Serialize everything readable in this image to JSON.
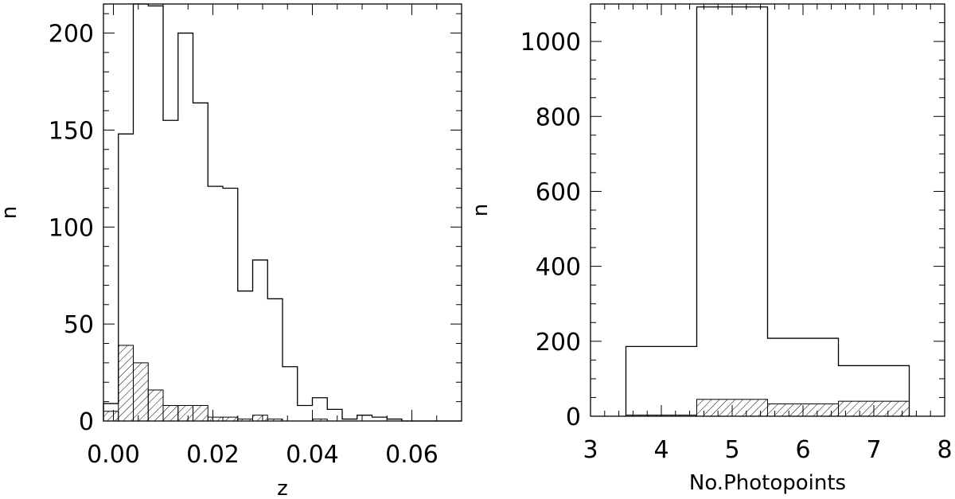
{
  "chart_data": [
    {
      "type": "histogram",
      "xlabel": "z",
      "ylabel": "n",
      "xlim": [
        -0.002,
        0.07
      ],
      "ylim": [
        0,
        215
      ],
      "xticks": [
        0.0,
        0.02,
        0.04,
        0.06
      ],
      "xtick_labels": [
        "0.00",
        "0.02",
        "0.04",
        "0.06"
      ],
      "yticks": [
        0,
        50,
        100,
        150,
        200
      ],
      "ytick_labels": [
        "0",
        "50",
        "100",
        "150",
        "200"
      ],
      "bin_edges": [
        -0.002,
        0.001,
        0.004,
        0.007,
        0.01,
        0.013,
        0.016,
        0.019,
        0.022,
        0.025,
        0.028,
        0.031,
        0.034,
        0.037,
        0.04,
        0.043,
        0.046,
        0.049,
        0.052,
        0.055,
        0.058,
        0.061,
        0.064,
        0.067,
        0.07
      ],
      "series": [
        {
          "style": "outline",
          "values": [
            9,
            148,
            216,
            214,
            155,
            200,
            164,
            121,
            120,
            67,
            83,
            63,
            28,
            8,
            12,
            6,
            1,
            3,
            2,
            1,
            0,
            0,
            0,
            0
          ]
        },
        {
          "style": "hatched",
          "values": [
            5,
            39,
            30,
            16,
            8,
            8,
            8,
            2,
            2,
            1,
            3,
            1,
            0,
            0,
            1,
            0,
            0,
            0,
            0,
            0,
            0,
            0,
            0,
            0
          ]
        }
      ]
    },
    {
      "type": "histogram",
      "xlabel": "No.Photopoints",
      "ylabel": "n",
      "xlim": [
        3,
        8
      ],
      "ylim": [
        0,
        1100
      ],
      "xticks": [
        3,
        4,
        5,
        6,
        7,
        8
      ],
      "xtick_labels": [
        "3",
        "4",
        "5",
        "6",
        "7",
        "8"
      ],
      "yticks": [
        0,
        200,
        400,
        600,
        800,
        1000
      ],
      "ytick_labels": [
        "0",
        "200",
        "400",
        "600",
        "800",
        "1000"
      ],
      "bin_edges": [
        3.5,
        4.5,
        5.5,
        6.5,
        7.5
      ],
      "series": [
        {
          "style": "outline",
          "values": [
            186,
            1092,
            208,
            135
          ]
        },
        {
          "style": "hatched",
          "values": [
            3,
            45,
            33,
            40
          ]
        }
      ]
    }
  ]
}
